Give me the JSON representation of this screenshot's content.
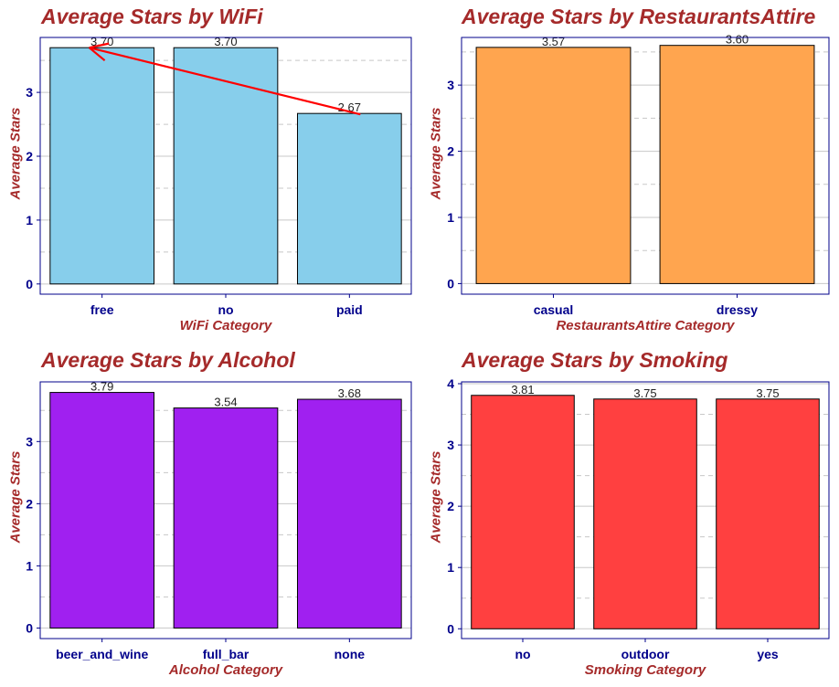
{
  "chart_data": [
    {
      "type": "bar",
      "title": "Average Stars by WiFi",
      "xlabel": "WiFi Category",
      "ylabel": "Average Stars",
      "categories": [
        "free",
        "no",
        "paid"
      ],
      "values": [
        3.7,
        3.7,
        2.67
      ],
      "value_labels": [
        "3.70",
        "3.70",
        "2.67"
      ],
      "ylim": [
        -0.16,
        3.86
      ],
      "yticks": [
        0,
        1,
        2,
        3
      ],
      "ytick_labels": [
        "0",
        "1",
        "2",
        "3"
      ],
      "bar_color": "#87ceeb",
      "grid": true,
      "annotation": {
        "type": "arrow",
        "from_category": "paid",
        "from_value": 2.67,
        "to_category": "free",
        "to_value": 3.7,
        "color": "#ff0000"
      }
    },
    {
      "type": "bar",
      "title": "Average Stars by RestaurantsAttire",
      "xlabel": "RestaurantsAttire Category",
      "ylabel": "Average Stars",
      "categories": [
        "casual",
        "dressy"
      ],
      "values": [
        3.57,
        3.6
      ],
      "value_labels": [
        "3.57",
        "3.60"
      ],
      "ylim": [
        -0.16,
        3.72
      ],
      "yticks": [
        0,
        1,
        2,
        3
      ],
      "ytick_labels": [
        "0",
        "1",
        "2",
        "3"
      ],
      "bar_color": "#ffa54f",
      "grid": true
    },
    {
      "type": "bar",
      "title": "Average Stars by Alcohol",
      "xlabel": "Alcohol Category",
      "ylabel": "Average Stars",
      "categories": [
        "beer_and_wine",
        "full_bar",
        "none"
      ],
      "values": [
        3.79,
        3.54,
        3.68
      ],
      "value_labels": [
        "3.79",
        "3.54",
        "3.68"
      ],
      "ylim": [
        -0.17,
        3.96
      ],
      "yticks": [
        0,
        1,
        2,
        3
      ],
      "ytick_labels": [
        "0",
        "1",
        "2",
        "3"
      ],
      "bar_color": "#a020f0",
      "grid": true
    },
    {
      "type": "bar",
      "title": "Average Stars by Smoking",
      "xlabel": "Smoking Category",
      "ylabel": "Average Stars",
      "categories": [
        "no",
        "outdoor",
        "yes"
      ],
      "values": [
        3.81,
        3.75,
        3.75
      ],
      "value_labels": [
        "3.81",
        "3.75",
        "3.75"
      ],
      "ylim": [
        -0.16,
        4.03
      ],
      "yticks": [
        0,
        1,
        2,
        3,
        4
      ],
      "ytick_labels": [
        "0",
        "1",
        "2",
        "3",
        "4"
      ],
      "bar_color": "#ff4040",
      "grid": true
    }
  ],
  "colors": {
    "title": "#a52a2a",
    "axis_text": "#00008b",
    "axis_line": "#00008b",
    "grid": "#c8c8c8",
    "annotation": "#ff0000"
  }
}
